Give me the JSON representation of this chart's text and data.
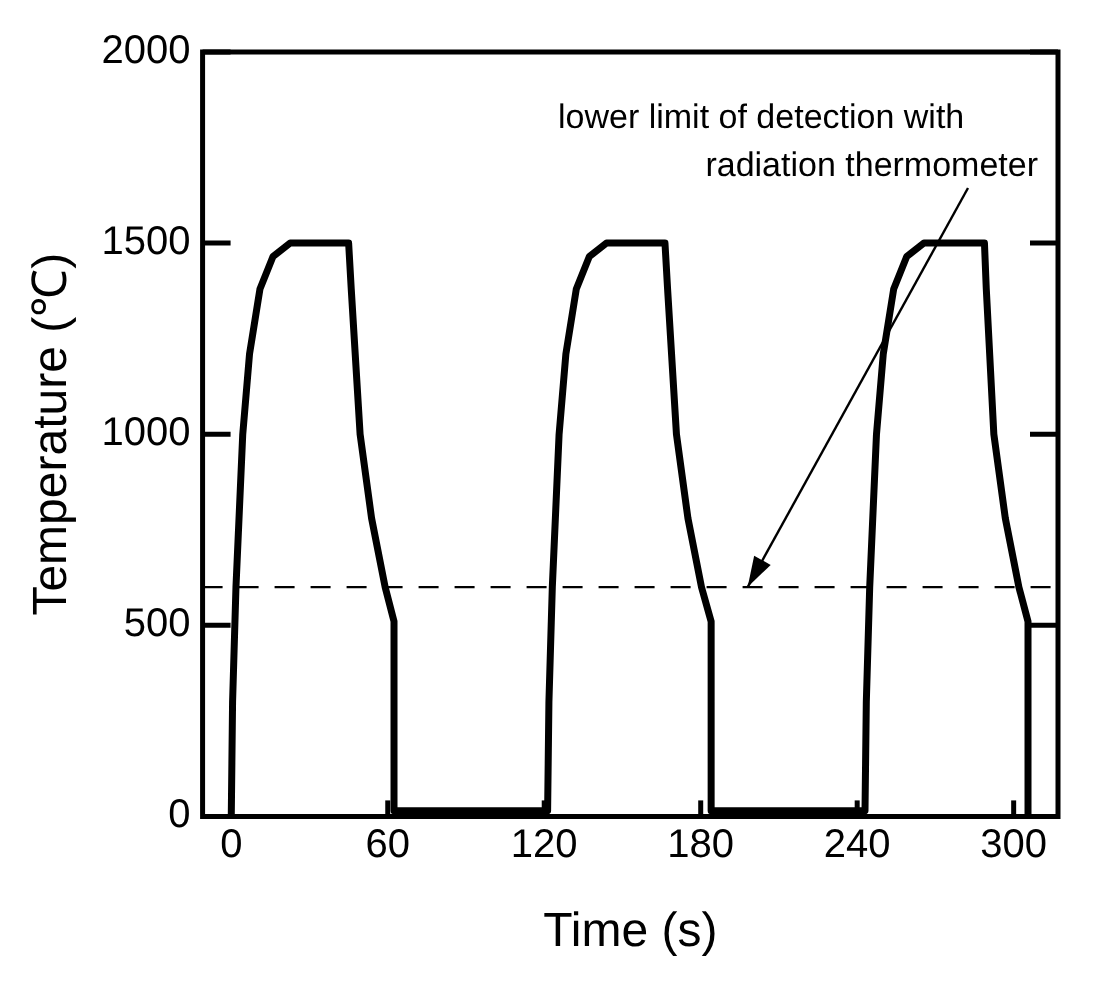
{
  "chart_data": {
    "type": "line",
    "xlabel": "Time (s)",
    "ylabel": "Temperature (℃)",
    "series": [
      {
        "color": "#000000",
        "x": [
          0,
          0.5,
          1.8,
          4.4,
          7,
          11,
          16,
          22.6,
          45,
          46,
          49.4,
          53.8,
          59,
          62.4,
          62.4,
          121.3,
          121.8,
          123.1,
          125.7,
          128.3,
          132.3,
          137.3,
          143.9,
          166.3,
          167.3,
          170.7,
          175.1,
          180.3,
          184,
          184,
          243,
          243.5,
          244.8,
          247.4,
          250,
          254,
          259,
          265.6,
          288.8,
          289.5,
          292.4,
          296.8,
          302,
          305.5,
          305.5
        ],
        "values": [
          0,
          300,
          600,
          1000,
          1210,
          1380,
          1465,
          1500,
          1500,
          1380,
          1000,
          780,
          600,
          510,
          15,
          15,
          300,
          600,
          1000,
          1210,
          1380,
          1465,
          1500,
          1500,
          1380,
          1000,
          780,
          600,
          510,
          15,
          15,
          300,
          600,
          1000,
          1210,
          1380,
          1465,
          1500,
          1500,
          1380,
          1000,
          780,
          600,
          510,
          0
        ]
      }
    ],
    "xlim": [
      -11,
      317
    ],
    "xticks": [
      0,
      60,
      120,
      180,
      240,
      300
    ],
    "ylim": [
      0,
      2000
    ],
    "yticks": [
      0,
      500,
      1000,
      1500,
      2000
    ],
    "ref_lines": [
      {
        "axis": "y",
        "value": 600,
        "color": "#000000",
        "line_style": "dashed"
      }
    ],
    "annotations": [
      {
        "text": "lower limit of detection with radiation thermometer",
        "x": 198,
        "y": 600
      }
    ],
    "grid": false,
    "legend": false,
    "marker": "none",
    "line_style": "solid"
  }
}
